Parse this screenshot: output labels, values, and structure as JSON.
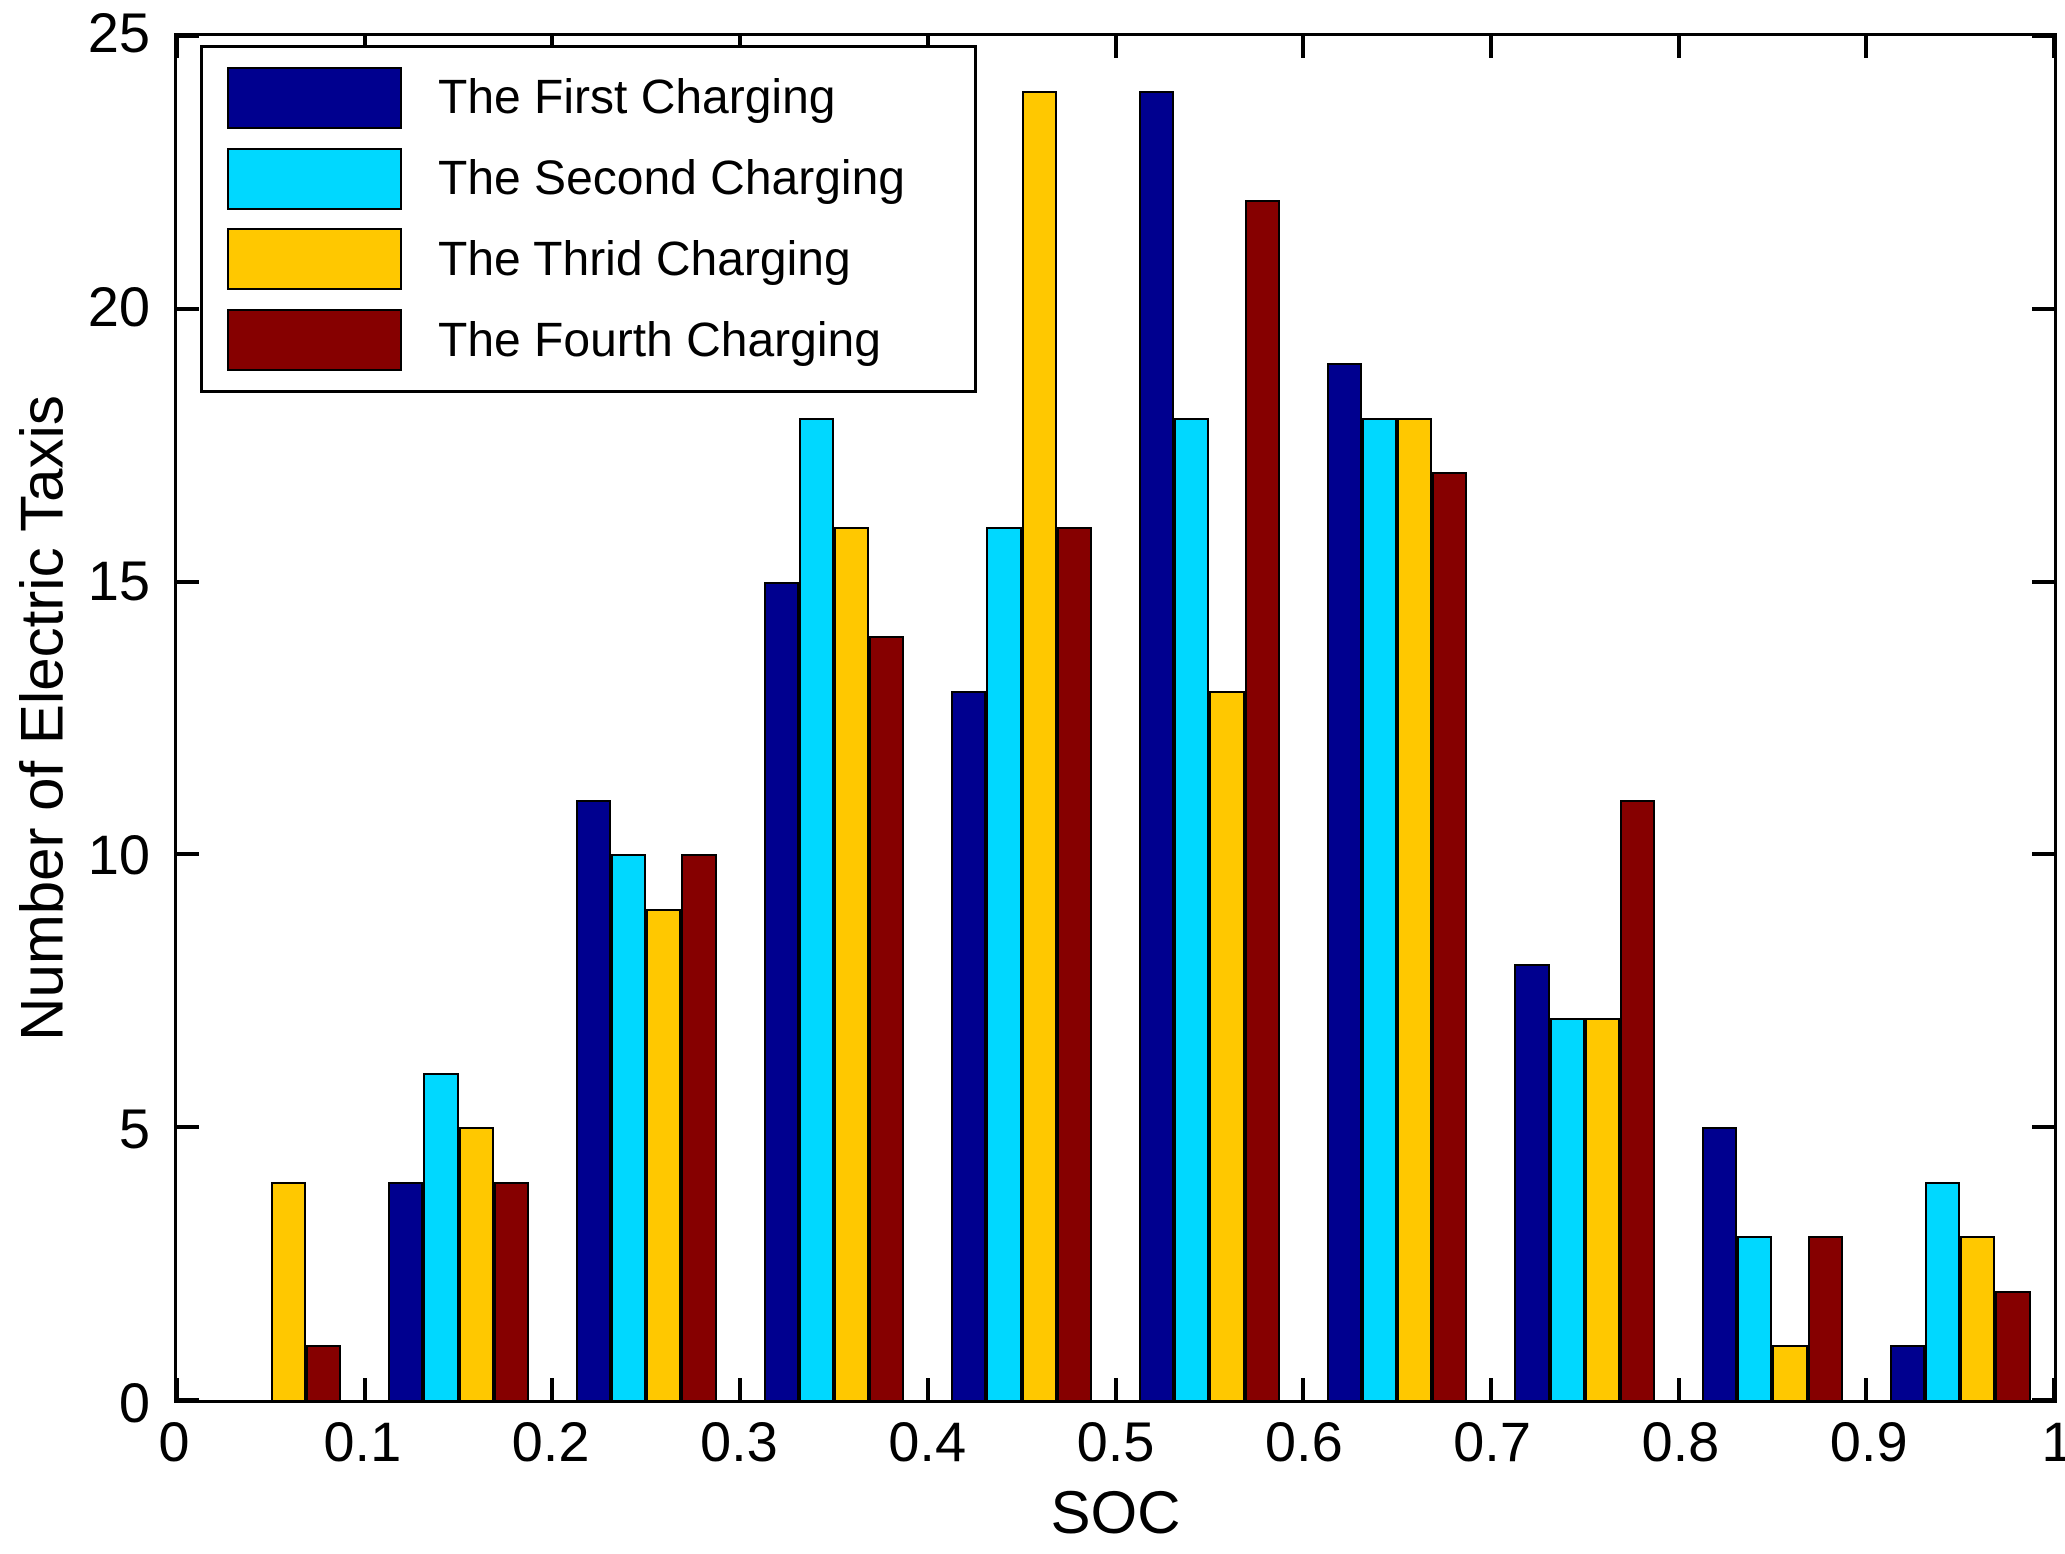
{
  "chart_data": {
    "type": "bar",
    "title": "",
    "xlabel": "SOC",
    "ylabel": "Number of Electric Taxis",
    "xlim": [
      0,
      1
    ],
    "ylim": [
      0,
      25
    ],
    "grid": false,
    "legend_position": "top-left",
    "x_ticks": [
      0,
      0.1,
      0.2,
      0.3,
      0.4,
      0.5,
      0.6,
      0.7,
      0.8,
      0.9,
      1
    ],
    "x_tick_labels": [
      "0",
      "0.1",
      "0.2",
      "0.3",
      "0.4",
      "0.5",
      "0.6",
      "0.7",
      "0.8",
      "0.9",
      "1"
    ],
    "y_ticks": [
      0,
      5,
      10,
      15,
      20,
      25
    ],
    "y_tick_labels": [
      "0",
      "5",
      "10",
      "15",
      "20",
      "25"
    ],
    "group_centers": [
      0.05,
      0.15,
      0.25,
      0.35,
      0.45,
      0.55,
      0.65,
      0.75,
      0.85,
      0.95
    ],
    "bar_width": 0.01875,
    "axis_color": "#000000",
    "background_color": "#ffffff",
    "series": [
      {
        "name": "The First Charging",
        "color": "#00008F",
        "values": [
          0,
          4,
          11,
          15,
          13,
          24,
          19,
          8,
          5,
          1
        ]
      },
      {
        "name": "The Second Charging",
        "color": "#00D8FF",
        "values": [
          0,
          6,
          10,
          18,
          16,
          18,
          18,
          7,
          3,
          4
        ]
      },
      {
        "name": "The Thrid Charging",
        "color": "#FFC800",
        "values": [
          4,
          5,
          9,
          16,
          24,
          13,
          18,
          7,
          1,
          3
        ]
      },
      {
        "name": "The Fourth Charging",
        "color": "#860000",
        "values": [
          1,
          4,
          10,
          14,
          16,
          22,
          17,
          11,
          3,
          2
        ]
      }
    ]
  }
}
